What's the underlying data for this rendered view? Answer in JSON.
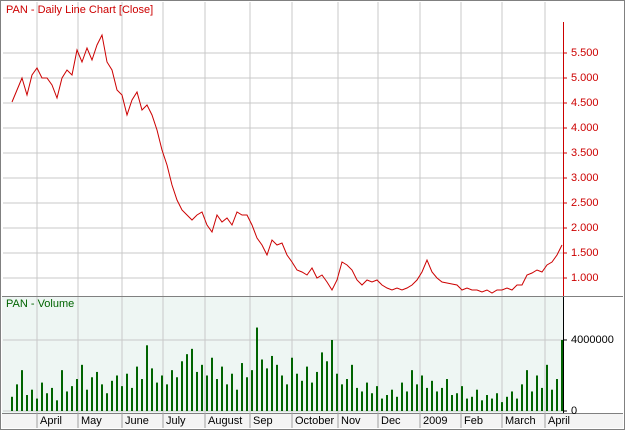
{
  "chart_data": [
    {
      "type": "line",
      "title": "PAN - Daily Line Chart [Close]",
      "color": "#cc0000",
      "grid": true,
      "x": [
        0,
        1,
        2,
        3,
        4,
        5,
        6,
        7,
        8,
        9,
        10,
        11,
        12,
        13,
        14,
        15,
        16,
        17,
        18,
        19,
        20,
        21,
        22,
        23,
        24,
        25,
        26,
        27,
        28,
        29,
        30,
        31,
        32,
        33,
        34,
        35,
        36,
        37,
        38,
        39,
        40,
        41,
        42,
        43,
        44,
        45,
        46,
        47,
        48,
        49,
        50,
        51,
        52,
        53,
        54,
        55,
        56,
        57,
        58,
        59,
        60,
        61,
        62,
        63,
        64,
        65,
        66,
        67,
        68,
        69,
        70,
        71,
        72,
        73,
        74,
        75,
        76,
        77,
        78,
        79,
        80,
        81,
        82,
        83,
        84,
        85,
        86,
        87,
        88,
        89,
        90,
        91,
        92,
        93,
        94,
        95,
        96,
        97,
        98,
        99,
        100,
        101,
        102,
        103,
        104,
        105,
        106,
        107,
        108,
        109,
        110
      ],
      "values": [
        4.52,
        4.76,
        5.0,
        4.66,
        5.06,
        5.2,
        5.0,
        5.0,
        4.86,
        4.6,
        5.0,
        5.16,
        5.06,
        5.56,
        5.32,
        5.6,
        5.36,
        5.66,
        5.86,
        5.32,
        5.16,
        4.76,
        4.66,
        4.26,
        4.56,
        4.72,
        4.36,
        4.46,
        4.26,
        3.96,
        3.56,
        3.26,
        2.86,
        2.56,
        2.36,
        2.26,
        2.16,
        2.26,
        2.32,
        2.06,
        1.92,
        2.26,
        2.12,
        2.2,
        2.06,
        2.32,
        2.26,
        2.26,
        2.06,
        1.8,
        1.66,
        1.46,
        1.76,
        1.66,
        1.7,
        1.46,
        1.32,
        1.16,
        1.12,
        1.06,
        1.2,
        1.0,
        1.06,
        0.92,
        0.76,
        0.96,
        1.32,
        1.26,
        1.16,
        0.96,
        0.86,
        0.96,
        0.92,
        0.96,
        0.86,
        0.8,
        0.76,
        0.8,
        0.76,
        0.8,
        0.86,
        0.96,
        1.12,
        1.36,
        1.12,
        1.0,
        0.92,
        0.9,
        0.88,
        0.86,
        0.76,
        0.8,
        0.76,
        0.76,
        0.72,
        0.76,
        0.7,
        0.76,
        0.76,
        0.8,
        0.76,
        0.86,
        0.86,
        1.06,
        1.1,
        1.16,
        1.12,
        1.26,
        1.32,
        1.46,
        1.66
      ],
      "xlim": [
        -1.8,
        110.2
      ],
      "ylim": [
        0.66,
        6.12
      ],
      "yticks": [
        {
          "value": 1.0,
          "label": "1.000"
        },
        {
          "value": 1.5,
          "label": "1.500"
        },
        {
          "value": 2.0,
          "label": "2.000"
        },
        {
          "value": 2.5,
          "label": "2.500"
        },
        {
          "value": 3.0,
          "label": "3.000"
        },
        {
          "value": 3.5,
          "label": "3.500"
        },
        {
          "value": 4.0,
          "label": "4.000"
        },
        {
          "value": 4.5,
          "label": "4.500"
        },
        {
          "value": 5.0,
          "label": "5.000"
        },
        {
          "value": 5.5,
          "label": "5.500"
        }
      ]
    },
    {
      "type": "bar",
      "title": "PAN - Volume",
      "color": "#006400",
      "grid": true,
      "x": [
        0,
        1,
        2,
        3,
        4,
        5,
        6,
        7,
        8,
        9,
        10,
        11,
        12,
        13,
        14,
        15,
        16,
        17,
        18,
        19,
        20,
        21,
        22,
        23,
        24,
        25,
        26,
        27,
        28,
        29,
        30,
        31,
        32,
        33,
        34,
        35,
        36,
        37,
        38,
        39,
        40,
        41,
        42,
        43,
        44,
        45,
        46,
        47,
        48,
        49,
        50,
        51,
        52,
        53,
        54,
        55,
        56,
        57,
        58,
        59,
        60,
        61,
        62,
        63,
        64,
        65,
        66,
        67,
        68,
        69,
        70,
        71,
        72,
        73,
        74,
        75,
        76,
        77,
        78,
        79,
        80,
        81,
        82,
        83,
        84,
        85,
        86,
        87,
        88,
        89,
        90,
        91,
        92,
        93,
        94,
        95,
        96,
        97,
        98,
        99,
        100,
        101,
        102,
        103,
        104,
        105,
        106,
        107,
        108,
        109,
        110
      ],
      "values": [
        800000,
        1500000,
        2300000,
        900000,
        1200000,
        700000,
        1600000,
        1000000,
        1300000,
        600000,
        2300000,
        1100000,
        1400000,
        1800000,
        2600000,
        1200000,
        1900000,
        2200000,
        1500000,
        1000000,
        1700000,
        2000000,
        1400000,
        2100000,
        1300000,
        2500000,
        1800000,
        3700000,
        2400000,
        1600000,
        2000000,
        1500000,
        2300000,
        1900000,
        2800000,
        3200000,
        3500000,
        2200000,
        2600000,
        2000000,
        3000000,
        1800000,
        2500000,
        1500000,
        2100000,
        1200000,
        2700000,
        1900000,
        2300000,
        4700000,
        2900000,
        2400000,
        3100000,
        2600000,
        2000000,
        1500000,
        3000000,
        2100000,
        1700000,
        2500000,
        1600000,
        2200000,
        3300000,
        2800000,
        4000000,
        2100000,
        1500000,
        1800000,
        2600000,
        1300000,
        1100000,
        1600000,
        1000000,
        1400000,
        700000,
        900000,
        1200000,
        800000,
        1600000,
        1100000,
        2300000,
        1500000,
        2000000,
        1300000,
        1700000,
        1100000,
        1300000,
        1800000,
        900000,
        1000000,
        1400000,
        700000,
        800000,
        1200000,
        600000,
        900000,
        700000,
        1000000,
        500000,
        800000,
        1100000,
        700000,
        1500000,
        2300000,
        1100000,
        2000000,
        1300000,
        2600000,
        1200000,
        1800000,
        4000000
      ],
      "xlim": [
        -1.8,
        110.2
      ],
      "ylim": [
        0,
        6420000
      ],
      "yticks": [
        0,
        4000000
      ],
      "xticks": [
        {
          "value": 5,
          "label": "April"
        },
        {
          "value": 13.2,
          "label": "May"
        },
        {
          "value": 22,
          "label": "June"
        },
        {
          "value": 30.2,
          "label": "July"
        },
        {
          "value": 38.6,
          "label": "August"
        },
        {
          "value": 47.6,
          "label": "Sep"
        },
        {
          "value": 56,
          "label": "October"
        },
        {
          "value": 65.2,
          "label": "Nov"
        },
        {
          "value": 73.2,
          "label": "Dec"
        },
        {
          "value": 81.6,
          "label": "2009"
        },
        {
          "value": 89.8,
          "label": "Feb"
        },
        {
          "value": 98,
          "label": "March"
        },
        {
          "value": 106.6,
          "label": "April"
        }
      ]
    }
  ]
}
